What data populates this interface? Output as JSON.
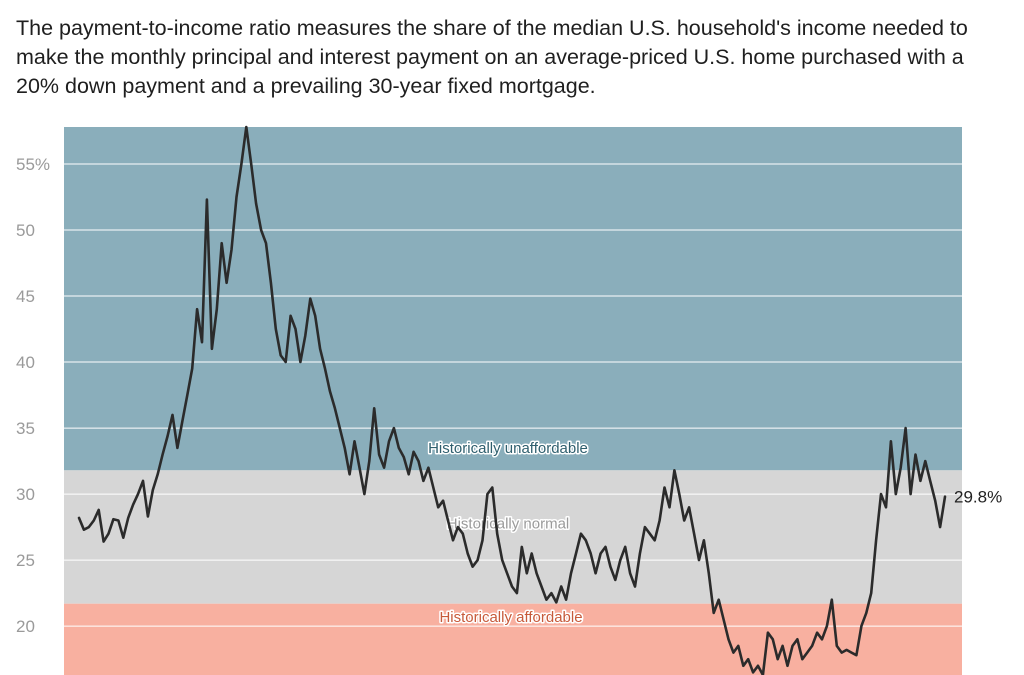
{
  "description": "The payment-to-income ratio measures the share of the median U.S. household's income needed to make the monthly principal and interest payment on an average-priced U.S. home purchased with a 20% down payment and a prevailing 30-year fixed mortgage.",
  "colors": {
    "unaffordable_band": "#8aaebb",
    "normal_band": "#d6d6d6",
    "affordable_band": "#f8b0a0",
    "line": "#2b2b2b",
    "gridline": "#ffffff",
    "tick_text": "#9a9a9a",
    "unaffordable_label": "#2f5f6e",
    "normal_label": "#9a9a9a",
    "affordable_label": "#c75a3a"
  },
  "chart_data": {
    "type": "line",
    "title": "",
    "xlabel": "",
    "ylabel": "",
    "ylim": [
      16.3,
      57.8
    ],
    "grid": "horizontal",
    "yticks": [
      {
        "value": 55,
        "label": "55%"
      },
      {
        "value": 50,
        "label": "50"
      },
      {
        "value": 45,
        "label": "45"
      },
      {
        "value": 40,
        "label": "40"
      },
      {
        "value": 35,
        "label": "35"
      },
      {
        "value": 30,
        "label": "30"
      },
      {
        "value": 25,
        "label": "25"
      },
      {
        "value": 20,
        "label": "20"
      }
    ],
    "bands": [
      {
        "label": "Historically unaffordable",
        "from": 31.8,
        "to": 57.8,
        "label_y": 33.1
      },
      {
        "label": "Historically normal",
        "from": 21.7,
        "to": 31.8,
        "label_y": 27.4
      },
      {
        "label": "Historically affordable",
        "from": 16.3,
        "to": 21.7,
        "label_y": 20.3
      }
    ],
    "end_label": "29.8%",
    "series": [
      {
        "values": [
          28.2,
          27.3,
          27.5,
          28.0,
          28.8,
          26.4,
          27.0,
          28.1,
          28.0,
          26.7,
          28.2,
          29.2,
          30.0,
          31.0,
          28.3,
          30.3,
          31.5,
          33.0,
          34.4,
          36.0,
          33.5,
          35.5,
          37.5,
          39.5,
          44.0,
          41.5,
          52.3,
          41.0,
          44.0,
          49.0,
          46.0,
          48.5,
          52.5,
          55.0,
          57.8,
          55.0,
          52.0,
          50.0,
          49.0,
          46.0,
          42.5,
          40.5,
          40.0,
          43.5,
          42.5,
          40.0,
          42.0,
          44.8,
          43.5,
          41.0,
          39.5,
          37.8,
          36.5,
          35.0,
          33.5,
          31.5,
          34.0,
          32.0,
          30.0,
          32.5,
          36.5,
          33.0,
          32.0,
          34.0,
          35.0,
          33.5,
          32.8,
          31.5,
          33.2,
          32.5,
          31.0,
          32.0,
          30.5,
          29.0,
          29.5,
          28.0,
          26.5,
          27.5,
          27.0,
          25.5,
          24.5,
          25.0,
          26.5,
          30.0,
          30.5,
          27.0,
          25.0,
          24.0,
          23.0,
          22.5,
          26.0,
          24.0,
          25.5,
          24.0,
          23.0,
          22.0,
          22.5,
          21.8,
          23.0,
          22.0,
          24.0,
          25.5,
          27.0,
          26.5,
          25.5,
          24.0,
          25.5,
          26.0,
          24.5,
          23.5,
          25.0,
          26.0,
          24.0,
          23.0,
          25.5,
          27.5,
          27.0,
          26.5,
          28.0,
          30.5,
          29.0,
          31.8,
          30.0,
          28.0,
          29.0,
          27.0,
          25.0,
          26.5,
          24.0,
          21.0,
          22.0,
          20.5,
          19.0,
          18.0,
          18.5,
          17.0,
          17.5,
          16.5,
          17.0,
          16.3,
          19.5,
          19.0,
          17.5,
          18.5,
          17.0,
          18.5,
          19.0,
          17.5,
          18.0,
          18.5,
          19.5,
          19.0,
          20.0,
          22.0,
          18.5,
          18.0,
          18.2,
          18.0,
          17.8,
          20.0,
          21.0,
          22.5,
          26.5,
          30.0,
          29.0,
          34.0,
          30.0,
          32.0,
          35.0,
          30.0,
          33.0,
          31.0,
          32.5,
          31.0,
          29.5,
          27.5,
          29.8
        ]
      }
    ]
  }
}
